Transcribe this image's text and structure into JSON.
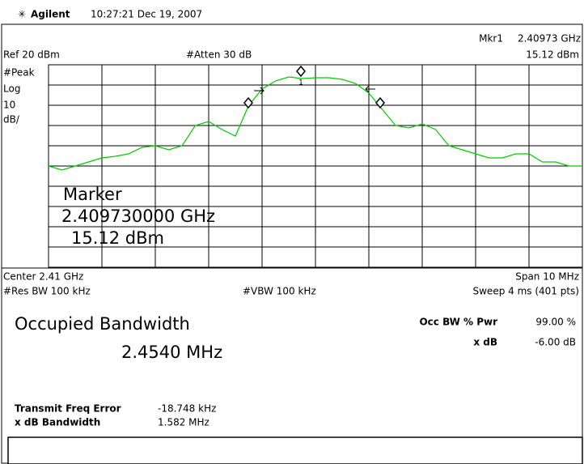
{
  "header": {
    "brand": "Agilent",
    "timestamp": "10:27:21 Dec 19, 2007"
  },
  "display": {
    "marker_label": "Mkr1",
    "marker_freq": "2.40973 GHz",
    "ref": "Ref 20 dBm",
    "atten": "#Atten 30 dB",
    "marker_amp": "15.12 dBm",
    "marker_number": "1",
    "scale_labels": [
      "#Peak",
      "Log",
      "10",
      "dB/"
    ],
    "overlay": [
      "Marker",
      "2.409730000 GHz",
      "15.12 dBm"
    ],
    "center": "Center 2.41 GHz",
    "span": "Span 10 MHz",
    "rbw": "#Res BW 100 kHz",
    "vbw": "#VBW 100 kHz",
    "sweep": "Sweep 4 ms (401 pts)",
    "trace": {
      "color": "#00cc00",
      "xlim": [
        2.405,
        2.415
      ],
      "ylim": [
        -80,
        20
      ],
      "x": [
        2.405,
        2.40525,
        2.4055,
        2.40575,
        2.406,
        2.40625,
        2.4065,
        2.40675,
        2.407,
        2.40725,
        2.4075,
        2.40775,
        2.408,
        2.40825,
        2.4085,
        2.40875,
        2.409,
        2.40925,
        2.4095,
        2.40975,
        2.41,
        2.41025,
        2.4105,
        2.41075,
        2.411,
        2.41125,
        2.4115,
        2.41175,
        2.412,
        2.41225,
        2.4125,
        2.41275,
        2.413,
        2.41325,
        2.4135,
        2.41375,
        2.414,
        2.41425,
        2.4145,
        2.41475,
        2.415
      ],
      "values": [
        -30,
        -32,
        -30,
        -28,
        -26,
        -25.2,
        -24,
        -20.8,
        -20,
        -22,
        -20,
        -10,
        -8,
        -12,
        -15.2,
        0,
        8,
        12,
        14,
        13.2,
        13.6,
        13.6,
        12.8,
        10.8,
        6,
        -2,
        -10,
        -11.2,
        -9.2,
        -12,
        -20,
        -22,
        -24,
        -26,
        -26,
        -24,
        -24,
        -28,
        -28,
        -30,
        -30
      ]
    }
  },
  "results": {
    "title": "Occupied Bandwidth",
    "occ_bw": "2.4540 MHz",
    "rows": [
      {
        "label": "Occ BW % Pwr",
        "value": "99.00 %"
      },
      {
        "label": "x dB",
        "value": "-6.00 dB"
      }
    ],
    "extra": [
      {
        "label": "Transmit Freq Error",
        "value": "-18.748 kHz"
      },
      {
        "label": "x dB Bandwidth",
        "value": "1.582 MHz"
      }
    ]
  }
}
